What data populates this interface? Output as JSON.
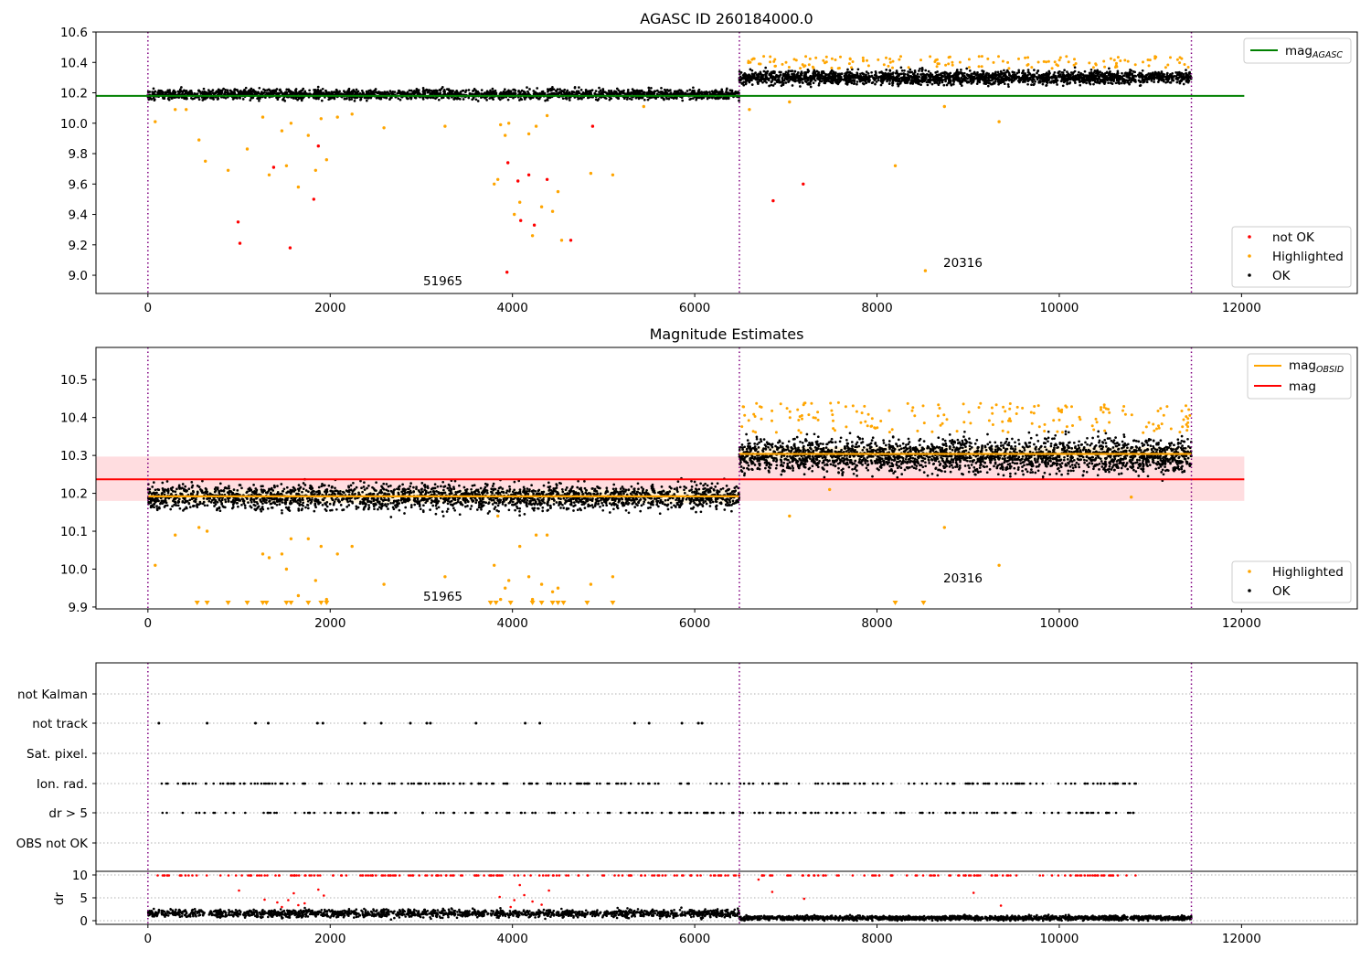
{
  "chart_data": [
    {
      "type": "scatter",
      "title": "AGASC ID 260184000.0",
      "xlim": [
        -570,
        13270
      ],
      "ylim": [
        8.88,
        10.6
      ],
      "xticks": [
        0,
        2000,
        4000,
        6000,
        8000,
        10000,
        12000
      ],
      "xtick_labels": [
        "0",
        "2000",
        "4000",
        "6000",
        "8000",
        "10000",
        "12000"
      ],
      "yticks": [
        9.0,
        9.2,
        9.4,
        9.6,
        9.8,
        10.0,
        10.2,
        10.4,
        10.6
      ],
      "ytick_labels": [
        "9.0",
        "9.2",
        "9.4",
        "9.6",
        "9.8",
        "10.0",
        "10.2",
        "10.4",
        "10.6"
      ],
      "obsid_boundaries": [
        0,
        6490,
        11450
      ],
      "obsid_labels": [
        {
          "text": "51965",
          "x": 3250,
          "y": 8.95
        },
        {
          "text": "20316",
          "x": 8980,
          "y": 9.06
        }
      ],
      "reference_lines": [
        {
          "legend": "mag",
          "legend_sub": "AGASC",
          "value": 10.18,
          "x_range": [
            -570,
            12030
          ],
          "color": "#008000"
        }
      ],
      "series": [
        {
          "legend": "OK",
          "color": "#000000",
          "segments": [
            {
              "x_range": [
                0,
                6490
              ],
              "mean": 10.19,
              "spread": 0.03
            },
            {
              "x_range": [
                6490,
                11450
              ],
              "mean": 10.3,
              "spread": 0.04
            }
          ]
        },
        {
          "legend": "Highlighted",
          "color": "#ffa500",
          "outliers_x": [
            80,
            300,
            420,
            560,
            630,
            880,
            1090,
            1260,
            1330,
            1470,
            1520,
            1570,
            1650,
            1760,
            1840,
            1900,
            1960,
            2080,
            2240,
            2590,
            3260,
            3800,
            3840,
            3870,
            3920,
            3960,
            4020,
            4080,
            4180,
            4220,
            4260,
            4320,
            4380,
            4440,
            4500,
            4540,
            4860,
            5100,
            5440,
            6600,
            7040,
            8200,
            8530,
            8740,
            9340
          ],
          "outliers_y": [
            10.01,
            10.09,
            10.09,
            9.89,
            9.75,
            9.69,
            9.83,
            10.04,
            9.66,
            9.95,
            9.72,
            10.0,
            9.58,
            9.92,
            9.69,
            10.03,
            9.76,
            10.04,
            10.06,
            9.97,
            9.98,
            9.6,
            9.63,
            9.99,
            9.92,
            10.0,
            9.4,
            9.48,
            9.93,
            9.26,
            9.98,
            9.45,
            10.05,
            9.42,
            9.55,
            9.23,
            9.67,
            9.66,
            10.11,
            10.09,
            10.14,
            9.72,
            9.03,
            10.11,
            10.01
          ]
        },
        {
          "legend": "not OK",
          "color": "#ff0000",
          "outliers_x": [
            990,
            1010,
            1380,
            1560,
            1820,
            1870,
            3940,
            3950,
            4060,
            4090,
            4180,
            4240,
            4380,
            4640,
            4880,
            6860,
            7190
          ],
          "outliers_y": [
            9.35,
            9.21,
            9.71,
            9.18,
            9.5,
            9.85,
            9.02,
            9.74,
            9.62,
            9.36,
            9.66,
            9.33,
            9.63,
            9.23,
            9.98,
            9.49,
            9.6
          ]
        }
      ],
      "legends": [
        {
          "position": "upper right",
          "entries": [
            "mag_AGASC"
          ]
        },
        {
          "position": "lower right",
          "entries": [
            "not OK",
            "Highlighted",
            "OK"
          ]
        }
      ]
    },
    {
      "type": "scatter",
      "title": "Magnitude Estimates",
      "xlim": [
        -570,
        13270
      ],
      "ylim": [
        9.895,
        10.585
      ],
      "xticks": [
        0,
        2000,
        4000,
        6000,
        8000,
        10000,
        12000
      ],
      "xtick_labels": [
        "0",
        "2000",
        "4000",
        "6000",
        "8000",
        "10000",
        "12000"
      ],
      "yticks": [
        9.9,
        10.0,
        10.1,
        10.2,
        10.3,
        10.4,
        10.5
      ],
      "ytick_labels": [
        "9.9",
        "10.0",
        "10.1",
        "10.2",
        "10.3",
        "10.4",
        "10.5"
      ],
      "obsid_boundaries": [
        0,
        6490,
        11450
      ],
      "obsid_labels": [
        {
          "text": "51965",
          "x": 3250,
          "y": 9.915
        },
        {
          "text": "20316",
          "x": 8980,
          "y": 9.965
        }
      ],
      "mag": {
        "value": 10.237,
        "band": [
          10.18,
          10.297
        ],
        "x_range": [
          -570,
          12030
        ],
        "color": "#ff0000",
        "band_color": "#ffdde0"
      },
      "mag_obsid": [
        {
          "x_range": [
            0,
            6490
          ],
          "value": 10.192
        },
        {
          "x_range": [
            6490,
            11450
          ],
          "value": 10.304
        }
      ],
      "mag_obsid_color": "#ffa500",
      "series": [
        {
          "legend": "OK",
          "color": "#000000",
          "segments": [
            {
              "x_range": [
                0,
                6490
              ],
              "mean": 10.19,
              "spread": 0.03
            },
            {
              "x_range": [
                6490,
                11450
              ],
              "mean": 10.3,
              "spread": 0.04
            }
          ]
        },
        {
          "legend": "Highlighted",
          "color": "#ffa500",
          "outliers_x": [
            80,
            300,
            560,
            650,
            1260,
            1330,
            1470,
            1520,
            1570,
            1650,
            1760,
            1840,
            1900,
            1960,
            2080,
            2240,
            2590,
            3260,
            3800,
            3840,
            3870,
            3920,
            3960,
            4080,
            4180,
            4220,
            4260,
            4320,
            4380,
            4440,
            4500,
            4860,
            5100,
            7040,
            7480,
            8740,
            9340,
            10790
          ],
          "outliers_y": [
            10.01,
            10.09,
            10.11,
            10.1,
            10.04,
            10.03,
            10.04,
            10.0,
            10.08,
            9.93,
            10.08,
            9.97,
            10.06,
            9.92,
            10.04,
            10.06,
            9.96,
            9.98,
            10.01,
            10.14,
            9.92,
            9.95,
            9.97,
            10.06,
            9.98,
            9.92,
            10.09,
            9.96,
            10.09,
            9.94,
            9.95,
            9.96,
            9.98,
            10.14,
            10.21,
            10.11,
            10.01,
            10.19
          ],
          "floor_markers_x": [
            540,
            650,
            880,
            1090,
            1260,
            1300,
            1520,
            1570,
            1760,
            1900,
            1960,
            3760,
            3820,
            3980,
            4220,
            4320,
            4440,
            4500,
            4560,
            4820,
            5100,
            8200,
            8510
          ]
        }
      ],
      "legends": [
        {
          "position": "upper right",
          "entries": [
            "mag_OBSID",
            "mag"
          ]
        },
        {
          "position": "lower right",
          "entries": [
            "Highlighted",
            "OK"
          ]
        }
      ]
    },
    {
      "type": "scatter",
      "xlim": [
        -570,
        13270
      ],
      "xticks": [
        0,
        2000,
        4000,
        6000,
        8000,
        10000,
        12000
      ],
      "xtick_labels": [
        "0",
        "2000",
        "4000",
        "6000",
        "8000",
        "10000",
        "12000"
      ],
      "category_rows": [
        "not Kalman",
        "not track",
        "Sat. pixel.",
        "Ion. rad.",
        "dr > 5",
        "OBS not OK"
      ],
      "obsid_boundaries": [
        0,
        6490,
        11450
      ],
      "flags": {
        "not track": [
          120,
          650,
          1180,
          1320,
          1860,
          1920,
          2380,
          2560,
          2880,
          3060,
          3100,
          3600,
          4140,
          4300,
          5340,
          5500,
          5860,
          6040,
          6080
        ],
        "Ion. rad.": [
          {
            "range": [
              120,
              10840
            ],
            "count": 240
          }
        ],
        "dr > 5": [
          {
            "range": [
              120,
              10840
            ],
            "count": 200
          }
        ]
      },
      "dr": {
        "ylabel": "dr",
        "ylim": [
          -0.8,
          10.8
        ],
        "yticks": [
          0,
          5,
          10
        ],
        "ytick_labels": [
          "0",
          "5",
          "10"
        ],
        "ok_segments": [
          {
            "x_range": [
              0,
              6490
            ],
            "mean": 1.6,
            "spread": 0.7
          },
          {
            "x_range": [
              6490,
              11450
            ],
            "mean": 0.6,
            "spread": 0.4
          }
        ],
        "clipped_x_range": [
          100,
          10850
        ],
        "clipped_value": 9.9,
        "red_outliers_x": [
          1000,
          1280,
          1420,
          1470,
          1540,
          1600,
          1650,
          1720,
          1870,
          1930,
          3860,
          3980,
          4020,
          4080,
          4130,
          4220,
          4320,
          4400,
          6700,
          6850,
          7200,
          9060,
          9360
        ],
        "red_outliers_y": [
          6.6,
          4.6,
          4.0,
          3.0,
          4.5,
          6.0,
          3.4,
          3.8,
          6.8,
          5.5,
          5.2,
          3.0,
          4.5,
          7.8,
          5.6,
          4.2,
          3.5,
          6.6,
          9.0,
          6.3,
          4.8,
          6.1,
          3.3
        ]
      }
    }
  ]
}
